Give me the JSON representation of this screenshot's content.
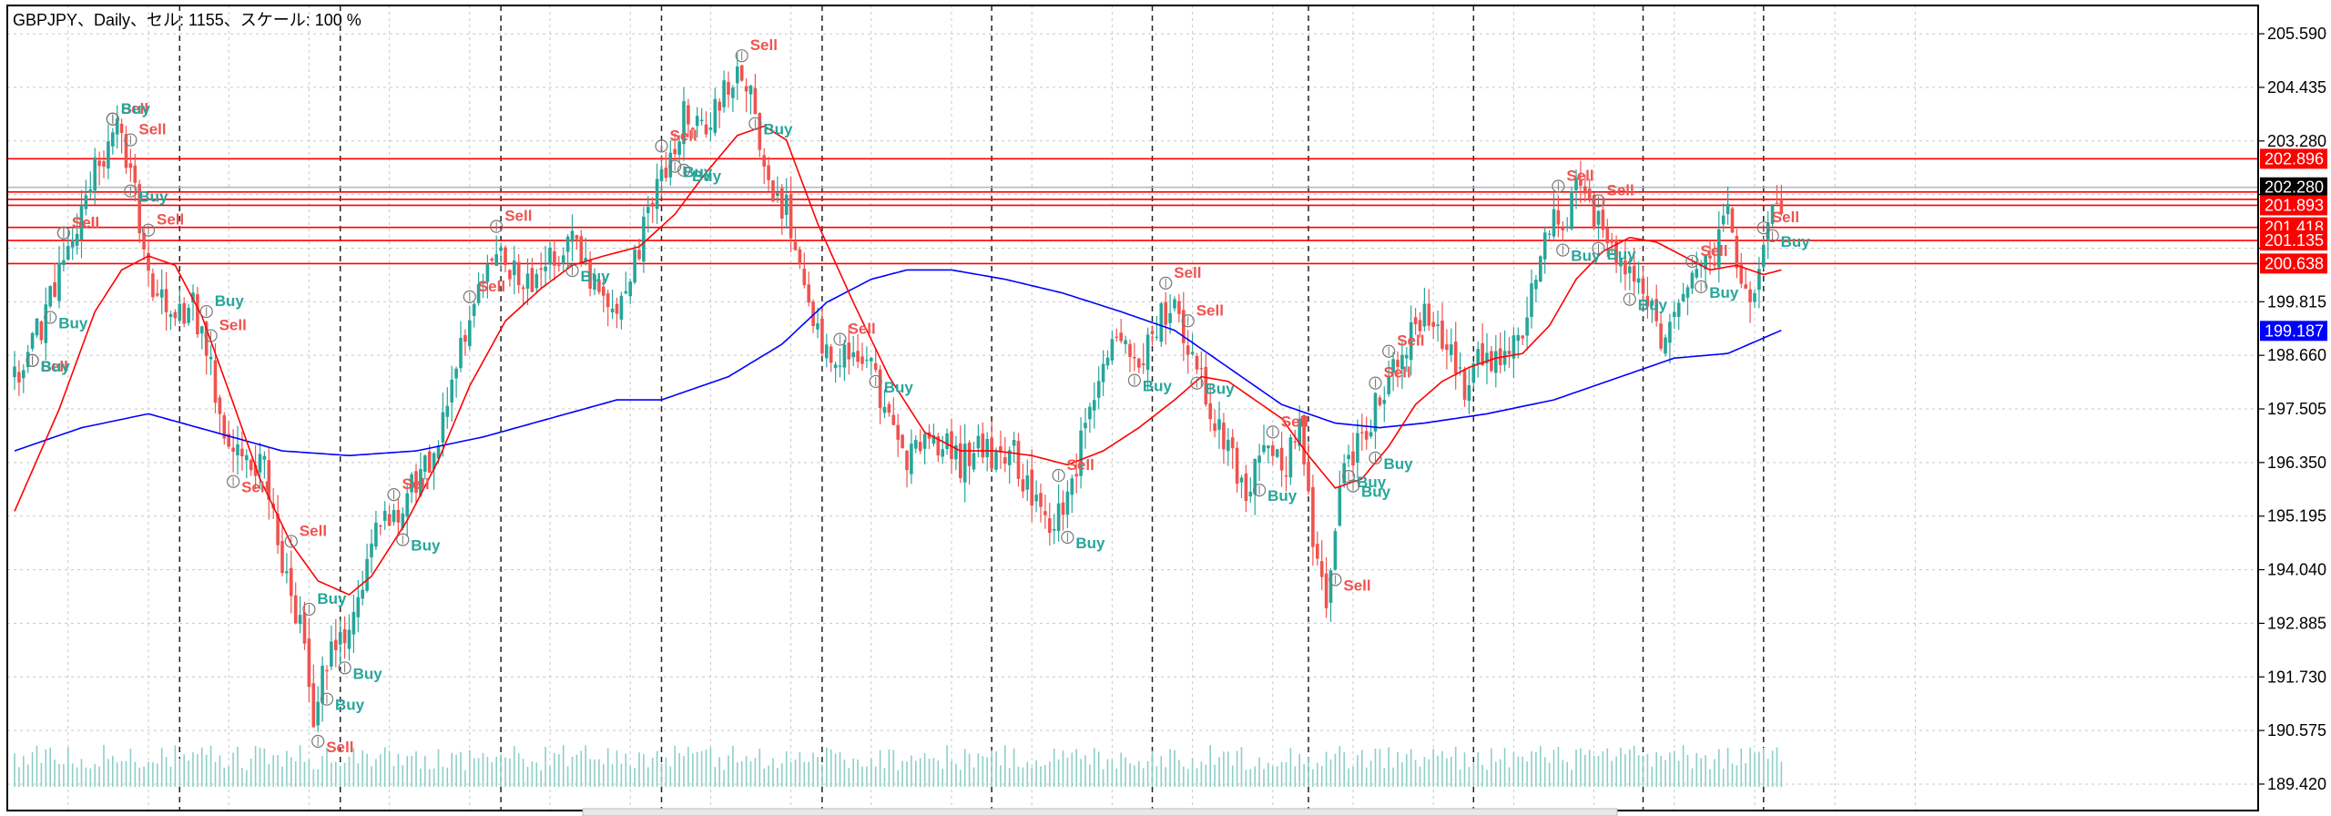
{
  "header": {
    "title": "GBPJPY、Daily、セル: 1155、スケール: 100 %"
  },
  "colors": {
    "bull": "#26a69a",
    "bear": "#ef5350",
    "ma_fast": "#ff0000",
    "ma_slow": "#0000ff",
    "level": "#ff0000",
    "current": "#b0b8c8",
    "grid": "#c8c8c8",
    "axis": "#000000",
    "volume": "#8ecfc6",
    "sell_label": "#ef5350",
    "buy_label": "#26a69a"
  },
  "chart_data": {
    "type": "candlestick",
    "symbol": "GBPJPY",
    "timeframe": "Daily",
    "ylim": [
      188.85,
      206.2
    ],
    "y_ticks": [
      205.59,
      204.435,
      203.28,
      202.125,
      200.97,
      199.815,
      198.66,
      197.505,
      196.35,
      195.195,
      194.04,
      192.885,
      191.73,
      190.575,
      189.42
    ],
    "y_tick_labels": [
      "205.590",
      "204.435",
      "203.280",
      "",
      "",
      "199.815",
      "198.660",
      "197.505",
      "196.350",
      "195.195",
      "194.040",
      "192.885",
      "191.730",
      "190.575",
      "189.420"
    ],
    "price_tags": [
      {
        "value": 202.896,
        "label": "202.896",
        "kind": "level"
      },
      {
        "value": 202.28,
        "label": "202.280",
        "kind": "current"
      },
      {
        "value": 201.893,
        "label": "201.893",
        "kind": "level"
      },
      {
        "value": 201.418,
        "label": "201.418",
        "kind": "level"
      },
      {
        "value": 201.135,
        "label": "201.135",
        "kind": "level"
      },
      {
        "value": 200.638,
        "label": "200.638",
        "kind": "level"
      },
      {
        "value": 199.187,
        "label": "199.187",
        "kind": "ma_slow"
      }
    ],
    "levels": [
      202.896,
      202.18,
      202.02,
      201.893,
      201.418,
      201.135,
      200.638
    ],
    "current_price": 202.28,
    "anchors": [
      [
        0,
        198.2
      ],
      [
        6,
        199.3
      ],
      [
        12,
        200.9
      ],
      [
        17,
        202.4
      ],
      [
        23,
        203.5
      ],
      [
        26,
        202.7
      ],
      [
        30,
        200.4
      ],
      [
        36,
        199.3
      ],
      [
        40,
        199.8
      ],
      [
        44,
        198.4
      ],
      [
        48,
        196.6
      ],
      [
        52,
        196.2
      ],
      [
        56,
        196.5
      ],
      [
        60,
        194.0
      ],
      [
        64,
        192.9
      ],
      [
        67,
        190.8
      ],
      [
        70,
        192.1
      ],
      [
        74,
        192.6
      ],
      [
        78,
        193.8
      ],
      [
        82,
        195.1
      ],
      [
        86,
        195.4
      ],
      [
        90,
        196.0
      ],
      [
        94,
        196.5
      ],
      [
        98,
        198.1
      ],
      [
        102,
        199.4
      ],
      [
        106,
        200.5
      ],
      [
        110,
        200.8
      ],
      [
        114,
        200.1
      ],
      [
        118,
        200.6
      ],
      [
        122,
        200.9
      ],
      [
        126,
        201.1
      ],
      [
        130,
        200.2
      ],
      [
        134,
        199.6
      ],
      [
        138,
        200.4
      ],
      [
        142,
        201.6
      ],
      [
        146,
        202.7
      ],
      [
        150,
        203.9
      ],
      [
        154,
        203.4
      ],
      [
        158,
        204.2
      ],
      [
        162,
        204.9
      ],
      [
        165,
        204.4
      ],
      [
        169,
        202.2
      ],
      [
        173,
        201.8
      ],
      [
        177,
        199.9
      ],
      [
        180,
        199.0
      ],
      [
        184,
        198.7
      ],
      [
        188,
        198.6
      ],
      [
        192,
        198.3
      ],
      [
        196,
        197.3
      ],
      [
        200,
        196.4
      ],
      [
        204,
        196.7
      ],
      [
        208,
        196.9
      ],
      [
        212,
        196.3
      ],
      [
        216,
        196.8
      ],
      [
        220,
        196.4
      ],
      [
        224,
        196.5
      ],
      [
        228,
        195.5
      ],
      [
        232,
        195.0
      ],
      [
        236,
        195.6
      ],
      [
        240,
        197.2
      ],
      [
        244,
        198.6
      ],
      [
        248,
        199.1
      ],
      [
        252,
        198.3
      ],
      [
        256,
        199.4
      ],
      [
        260,
        199.7
      ],
      [
        263,
        199.0
      ],
      [
        266,
        198.2
      ],
      [
        269,
        197.2
      ],
      [
        273,
        196.6
      ],
      [
        276,
        195.4
      ],
      [
        280,
        196.9
      ],
      [
        284,
        196.1
      ],
      [
        288,
        197.0
      ],
      [
        291,
        194.6
      ],
      [
        294,
        193.4
      ],
      [
        297,
        195.9
      ],
      [
        301,
        196.8
      ],
      [
        305,
        197.5
      ],
      [
        309,
        198.3
      ],
      [
        313,
        199.2
      ],
      [
        317,
        199.5
      ],
      [
        321,
        198.8
      ],
      [
        325,
        198.0
      ],
      [
        329,
        198.7
      ],
      [
        333,
        198.4
      ],
      [
        337,
        199.0
      ],
      [
        341,
        200.4
      ],
      [
        345,
        201.8
      ],
      [
        348,
        201.5
      ],
      [
        351,
        202.6
      ],
      [
        354,
        201.7
      ],
      [
        357,
        201.2
      ],
      [
        360,
        200.6
      ],
      [
        363,
        200.3
      ],
      [
        366,
        199.8
      ],
      [
        369,
        199.0
      ],
      [
        372,
        199.7
      ],
      [
        375,
        200.2
      ],
      [
        378,
        200.6
      ],
      [
        381,
        200.9
      ],
      [
        384,
        201.7
      ],
      [
        387,
        200.4
      ],
      [
        390,
        199.9
      ],
      [
        393,
        201.3
      ],
      [
        396,
        202.0
      ]
    ],
    "n_candles": 397,
    "ma_fast": [
      [
        0,
        195.3
      ],
      [
        10,
        197.5
      ],
      [
        18,
        199.6
      ],
      [
        24,
        200.5
      ],
      [
        30,
        200.8
      ],
      [
        36,
        200.6
      ],
      [
        42,
        199.5
      ],
      [
        48,
        197.9
      ],
      [
        55,
        196.0
      ],
      [
        62,
        194.6
      ],
      [
        68,
        193.8
      ],
      [
        75,
        193.5
      ],
      [
        80,
        193.9
      ],
      [
        88,
        195.1
      ],
      [
        95,
        196.4
      ],
      [
        102,
        198.0
      ],
      [
        110,
        199.4
      ],
      [
        118,
        200.1
      ],
      [
        125,
        200.6
      ],
      [
        132,
        200.8
      ],
      [
        140,
        201.0
      ],
      [
        148,
        201.7
      ],
      [
        155,
        202.6
      ],
      [
        162,
        203.4
      ],
      [
        168,
        203.6
      ],
      [
        173,
        203.3
      ],
      [
        180,
        201.5
      ],
      [
        188,
        199.8
      ],
      [
        196,
        198.2
      ],
      [
        204,
        197.0
      ],
      [
        212,
        196.6
      ],
      [
        220,
        196.6
      ],
      [
        228,
        196.5
      ],
      [
        236,
        196.3
      ],
      [
        244,
        196.6
      ],
      [
        252,
        197.1
      ],
      [
        260,
        197.7
      ],
      [
        266,
        198.2
      ],
      [
        272,
        198.1
      ],
      [
        278,
        197.7
      ],
      [
        284,
        197.3
      ],
      [
        290,
        196.5
      ],
      [
        296,
        195.8
      ],
      [
        302,
        196.0
      ],
      [
        308,
        196.7
      ],
      [
        314,
        197.6
      ],
      [
        320,
        198.1
      ],
      [
        326,
        198.4
      ],
      [
        332,
        198.6
      ],
      [
        338,
        198.7
      ],
      [
        344,
        199.3
      ],
      [
        350,
        200.3
      ],
      [
        356,
        200.9
      ],
      [
        362,
        201.2
      ],
      [
        368,
        201.1
      ],
      [
        374,
        200.8
      ],
      [
        380,
        200.5
      ],
      [
        386,
        200.6
      ],
      [
        392,
        200.4
      ],
      [
        396,
        200.5
      ]
    ],
    "ma_slow": [
      [
        0,
        196.6
      ],
      [
        15,
        197.1
      ],
      [
        30,
        197.4
      ],
      [
        45,
        197.0
      ],
      [
        60,
        196.6
      ],
      [
        75,
        196.5
      ],
      [
        90,
        196.6
      ],
      [
        105,
        196.9
      ],
      [
        120,
        197.3
      ],
      [
        135,
        197.7
      ],
      [
        145,
        197.7
      ],
      [
        160,
        198.2
      ],
      [
        172,
        198.9
      ],
      [
        182,
        199.8
      ],
      [
        192,
        200.3
      ],
      [
        200,
        200.5
      ],
      [
        210,
        200.5
      ],
      [
        222,
        200.3
      ],
      [
        235,
        200.0
      ],
      [
        248,
        199.6
      ],
      [
        260,
        199.2
      ],
      [
        272,
        198.4
      ],
      [
        284,
        197.6
      ],
      [
        296,
        197.2
      ],
      [
        306,
        197.1
      ],
      [
        316,
        197.2
      ],
      [
        330,
        197.4
      ],
      [
        345,
        197.7
      ],
      [
        360,
        198.2
      ],
      [
        372,
        198.6
      ],
      [
        384,
        198.7
      ],
      [
        396,
        199.2
      ]
    ],
    "signals": [
      {
        "i": 4,
        "type": "Sell",
        "side": "below"
      },
      {
        "i": 4,
        "type": "Buy",
        "side": "below"
      },
      {
        "i": 8,
        "type": "Buy",
        "side": "below"
      },
      {
        "i": 11,
        "type": "Sell",
        "side": "above"
      },
      {
        "i": 11,
        "type": "Sell",
        "side": "above"
      },
      {
        "i": 22,
        "type": "Sell",
        "side": "above"
      },
      {
        "i": 22,
        "type": "Buy",
        "side": "above"
      },
      {
        "i": 26,
        "type": "Sell",
        "side": "above"
      },
      {
        "i": 26,
        "type": "Buy",
        "side": "below"
      },
      {
        "i": 30,
        "type": "Sell",
        "side": "above"
      },
      {
        "i": 43,
        "type": "Buy",
        "side": "above"
      },
      {
        "i": 44,
        "type": "Sell",
        "side": "above"
      },
      {
        "i": 49,
        "type": "Sell",
        "side": "below"
      },
      {
        "i": 62,
        "type": "Sell",
        "side": "above"
      },
      {
        "i": 66,
        "type": "Buy",
        "side": "above"
      },
      {
        "i": 68,
        "type": "Sell",
        "side": "below"
      },
      {
        "i": 70,
        "type": "Buy",
        "side": "below"
      },
      {
        "i": 74,
        "type": "Buy",
        "side": "below"
      },
      {
        "i": 85,
        "type": "Sell",
        "side": "above"
      },
      {
        "i": 87,
        "type": "Buy",
        "side": "below"
      },
      {
        "i": 102,
        "type": "Sell",
        "side": "above"
      },
      {
        "i": 108,
        "type": "Sell",
        "side": "above"
      },
      {
        "i": 125,
        "type": "Buy",
        "side": "below"
      },
      {
        "i": 145,
        "type": "Sell",
        "side": "above"
      },
      {
        "i": 148,
        "type": "Buy",
        "side": "below"
      },
      {
        "i": 150,
        "type": "Buy",
        "side": "below"
      },
      {
        "i": 163,
        "type": "Sell",
        "side": "above"
      },
      {
        "i": 166,
        "type": "Buy",
        "side": "below"
      },
      {
        "i": 185,
        "type": "Sell",
        "side": "above"
      },
      {
        "i": 193,
        "type": "Buy",
        "side": "below"
      },
      {
        "i": 234,
        "type": "Sell",
        "side": "above"
      },
      {
        "i": 236,
        "type": "Buy",
        "side": "below"
      },
      {
        "i": 251,
        "type": "Buy",
        "side": "below"
      },
      {
        "i": 258,
        "type": "Sell",
        "side": "above"
      },
      {
        "i": 263,
        "type": "Sell",
        "side": "above"
      },
      {
        "i": 265,
        "type": "Buy",
        "side": "below"
      },
      {
        "i": 282,
        "type": "Sell",
        "side": "above"
      },
      {
        "i": 279,
        "type": "Buy",
        "side": "below"
      },
      {
        "i": 296,
        "type": "Sell",
        "side": "below"
      },
      {
        "i": 299,
        "type": "Buy",
        "side": "below"
      },
      {
        "i": 300,
        "type": "Buy",
        "side": "below"
      },
      {
        "i": 305,
        "type": "Sell",
        "side": "above"
      },
      {
        "i": 305,
        "type": "Buy",
        "side": "below"
      },
      {
        "i": 308,
        "type": "Sell",
        "side": "above"
      },
      {
        "i": 346,
        "type": "Sell",
        "side": "above"
      },
      {
        "i": 347,
        "type": "Buy",
        "side": "below"
      },
      {
        "i": 355,
        "type": "Sell",
        "side": "above"
      },
      {
        "i": 355,
        "type": "Buy",
        "side": "below"
      },
      {
        "i": 362,
        "type": "Buy",
        "side": "below"
      },
      {
        "i": 376,
        "type": "Sell",
        "side": "above"
      },
      {
        "i": 378,
        "type": "Buy",
        "side": "below"
      },
      {
        "i": 392,
        "type": "Sell",
        "side": "above"
      },
      {
        "i": 394,
        "type": "Buy",
        "side": "below"
      }
    ],
    "period_separators": [
      37,
      73,
      109,
      145,
      181,
      219,
      255,
      290,
      327,
      365,
      392
    ],
    "grid": true,
    "volume": true
  }
}
